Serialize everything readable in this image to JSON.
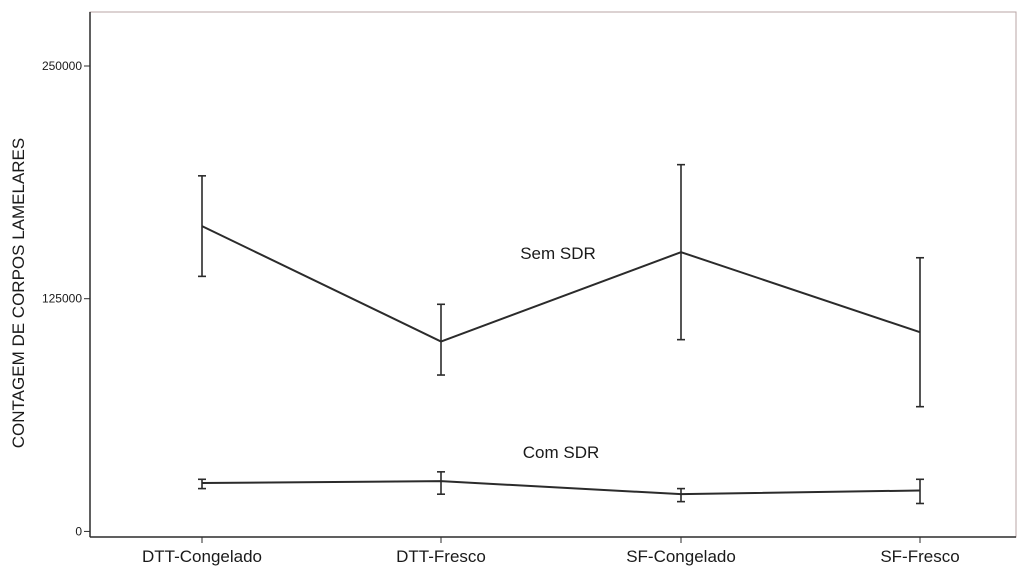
{
  "chart_data": {
    "type": "line",
    "title": "",
    "xlabel": "",
    "ylabel": "CONTAGEM DE CORPOS LAMELARES",
    "categories": [
      "DTT-Congelado",
      "DTT-Fresco",
      "SF-Congelado",
      "SF-Fresco"
    ],
    "yticks": [
      0,
      125000,
      250000
    ],
    "ytick_labels": [
      "0",
      "125000",
      "250000"
    ],
    "ylim": [
      -3000,
      279000
    ],
    "grid": false,
    "legend": "none (series labelled inline)",
    "series": [
      {
        "name": "Sem SDR",
        "values": [
          164000,
          102000,
          150000,
          107000
        ],
        "error_low": [
          137000,
          84000,
          103000,
          67000
        ],
        "error_high": [
          191000,
          122000,
          197000,
          147000
        ]
      },
      {
        "name": "Com SDR",
        "values": [
          26000,
          27000,
          20000,
          22000
        ],
        "error_low": [
          23000,
          20000,
          16000,
          15000
        ],
        "error_high": [
          28000,
          32000,
          23000,
          28000
        ]
      }
    ],
    "colors": {
      "line": "#2b2b2b",
      "frame": "#b8a4a4",
      "background": "#ffffff"
    }
  }
}
